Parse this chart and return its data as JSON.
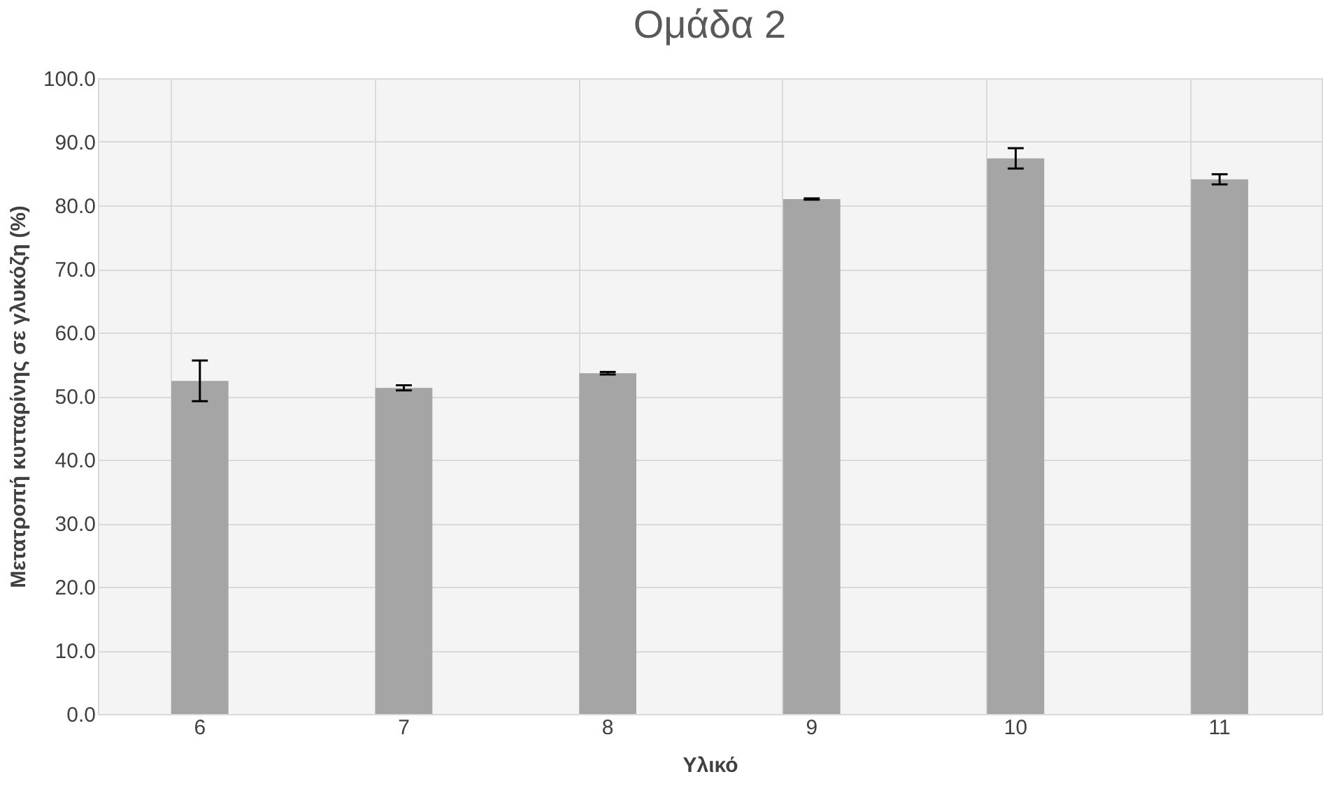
{
  "chart_data": {
    "type": "bar",
    "title": "Ομάδα 2",
    "xlabel": "Υλικό",
    "ylabel": "Μετατροπή κυτταρίνης σε γλυκόζη (%)",
    "categories": [
      "6",
      "7",
      "8",
      "9",
      "10",
      "11"
    ],
    "values": [
      52.4,
      51.3,
      53.6,
      81.0,
      87.4,
      84.1
    ],
    "errors": [
      3.2,
      0.4,
      0.2,
      0.1,
      1.6,
      0.8
    ],
    "color": "#a5a5a5",
    "ylim": [
      0,
      100
    ],
    "yticks": [
      {
        "value": 0,
        "label": "0.0"
      },
      {
        "value": 10,
        "label": "10.0"
      },
      {
        "value": 20,
        "label": "20.0"
      },
      {
        "value": 30,
        "label": "30.0"
      },
      {
        "value": 40,
        "label": "40.0"
      },
      {
        "value": 50,
        "label": "50.0"
      },
      {
        "value": 60,
        "label": "60.0"
      },
      {
        "value": 70,
        "label": "70.0"
      },
      {
        "value": 80,
        "label": "80.0"
      },
      {
        "value": 90,
        "label": "90.0"
      },
      {
        "value": 100,
        "label": "100.0"
      }
    ],
    "grid": true
  }
}
